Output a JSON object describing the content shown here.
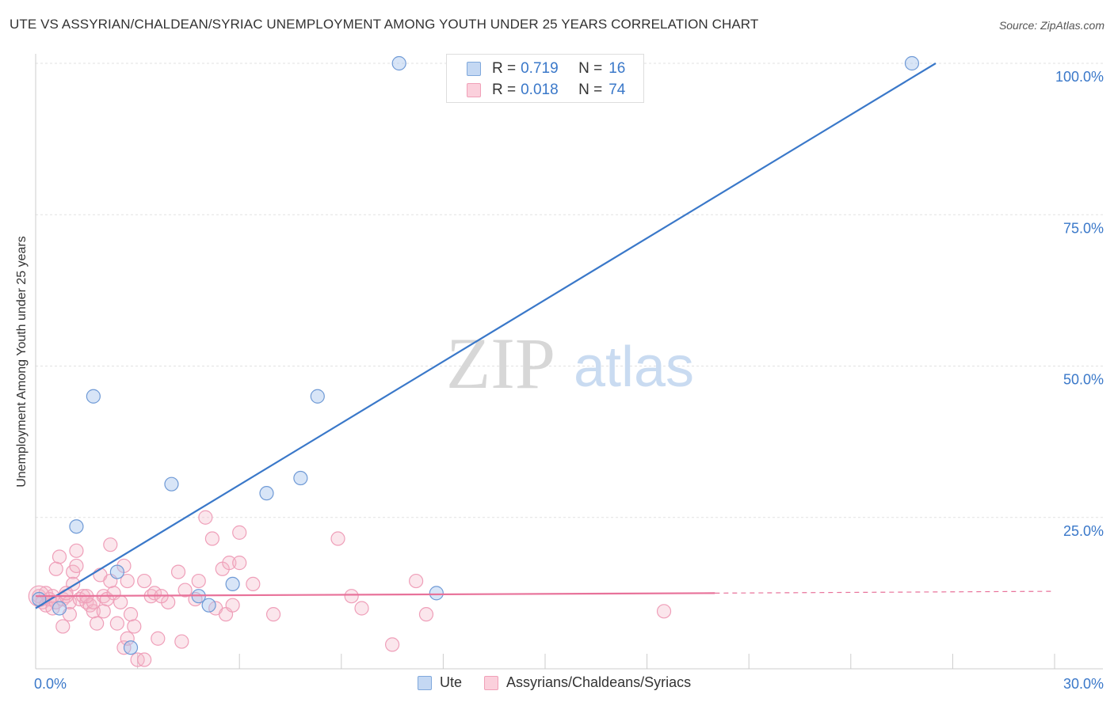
{
  "header": {
    "title": "UTE VS ASSYRIAN/CHALDEAN/SYRIAC UNEMPLOYMENT AMONG YOUTH UNDER 25 YEARS CORRELATION CHART",
    "source": "Source: ZipAtlas.com"
  },
  "watermark": {
    "zip": "ZIP",
    "atlas": "atlas"
  },
  "colors": {
    "ute": "#a9c6ee",
    "ute_line": "#3a78c9",
    "assyrian": "#f4b6c8",
    "assyrian_line": "#e8729a",
    "axis_text": "#3a78c9"
  },
  "legend": {
    "rows": [
      {
        "series": "Ute",
        "r_label": "R =",
        "r_value": "0.719",
        "n_label": "N =",
        "n_value": "16"
      },
      {
        "series": "Assyrians/Chaldeans/Syriacs",
        "r_label": "R =",
        "r_value": "0.018",
        "n_label": "N =",
        "n_value": "74"
      }
    ]
  },
  "bottom_legend": {
    "ute": "Ute",
    "assyrian": "Assyrians/Chaldeans/Syriacs"
  },
  "chart_data": {
    "type": "scatter",
    "title": "UTE VS ASSYRIAN/CHALDEAN/SYRIAC UNEMPLOYMENT AMONG YOUTH UNDER 25 YEARS CORRELATION CHART",
    "xlabel": "",
    "ylabel": "Unemployment Among Youth under 25 years",
    "xlim": [
      0,
      30
    ],
    "ylim": [
      0,
      100
    ],
    "x_tick_labels": [
      "0.0%",
      "30.0%"
    ],
    "y_tick_labels": [
      "25.0%",
      "50.0%",
      "75.0%",
      "100.0%"
    ],
    "y_ticks": [
      25,
      50,
      75,
      100
    ],
    "x_grid_ticks": [
      3,
      6,
      9,
      12,
      15,
      18,
      21,
      24,
      27,
      30
    ],
    "grid": true,
    "series": [
      {
        "name": "Ute",
        "r": 0.719,
        "n": 16,
        "points": [
          [
            0.1,
            11.5
          ],
          [
            0.7,
            10.0
          ],
          [
            1.2,
            23.5
          ],
          [
            1.7,
            45.0
          ],
          [
            2.4,
            16.0
          ],
          [
            2.8,
            3.5
          ],
          [
            4.0,
            30.5
          ],
          [
            4.8,
            12.0
          ],
          [
            5.1,
            10.5
          ],
          [
            5.8,
            14.0
          ],
          [
            6.8,
            29.0
          ],
          [
            7.8,
            31.5
          ],
          [
            8.3,
            45.0
          ],
          [
            10.7,
            100.0
          ],
          [
            11.8,
            12.5
          ],
          [
            25.8,
            100.0
          ]
        ],
        "trend": {
          "x0": 0.0,
          "y0": 10.0,
          "x1": 26.5,
          "y1": 100.0
        }
      },
      {
        "name": "Assyrians/Chaldeans/Syriacs",
        "r": 0.018,
        "n": 74,
        "points": [
          [
            0.1,
            12.0
          ],
          [
            0.2,
            11.0
          ],
          [
            0.3,
            12.5
          ],
          [
            0.3,
            10.5
          ],
          [
            0.4,
            11.5
          ],
          [
            0.5,
            10.0
          ],
          [
            0.5,
            12.0
          ],
          [
            0.6,
            11.0
          ],
          [
            0.6,
            16.5
          ],
          [
            0.7,
            18.5
          ],
          [
            0.8,
            11.5
          ],
          [
            0.8,
            7.0
          ],
          [
            0.9,
            12.0
          ],
          [
            1.0,
            11.0
          ],
          [
            1.0,
            9.0
          ],
          [
            1.1,
            16.0
          ],
          [
            1.1,
            14.0
          ],
          [
            1.2,
            19.5
          ],
          [
            1.2,
            17.0
          ],
          [
            1.3,
            11.5
          ],
          [
            1.4,
            12.0
          ],
          [
            1.5,
            11.0
          ],
          [
            1.6,
            10.5
          ],
          [
            1.7,
            9.5
          ],
          [
            1.7,
            11.0
          ],
          [
            1.8,
            7.5
          ],
          [
            1.9,
            15.5
          ],
          [
            2.0,
            12.0
          ],
          [
            2.1,
            11.5
          ],
          [
            2.2,
            14.5
          ],
          [
            2.2,
            20.5
          ],
          [
            2.3,
            12.5
          ],
          [
            2.4,
            7.5
          ],
          [
            2.5,
            11.0
          ],
          [
            2.6,
            17.0
          ],
          [
            2.6,
            3.5
          ],
          [
            2.7,
            14.5
          ],
          [
            2.7,
            5.0
          ],
          [
            2.8,
            9.0
          ],
          [
            3.0,
            1.5
          ],
          [
            3.2,
            1.5
          ],
          [
            3.2,
            14.5
          ],
          [
            3.4,
            12.0
          ],
          [
            3.5,
            12.5
          ],
          [
            3.6,
            5.0
          ],
          [
            3.9,
            11.0
          ],
          [
            4.2,
            16.0
          ],
          [
            4.3,
            4.5
          ],
          [
            4.4,
            13.0
          ],
          [
            4.8,
            14.5
          ],
          [
            5.0,
            25.0
          ],
          [
            5.2,
            21.5
          ],
          [
            5.3,
            10.0
          ],
          [
            5.5,
            16.5
          ],
          [
            5.6,
            9.0
          ],
          [
            5.7,
            17.5
          ],
          [
            5.8,
            10.5
          ],
          [
            6.0,
            22.5
          ],
          [
            6.0,
            17.5
          ],
          [
            6.4,
            14.0
          ],
          [
            7.0,
            9.0
          ],
          [
            8.9,
            21.5
          ],
          [
            9.3,
            12.0
          ],
          [
            9.6,
            10.0
          ],
          [
            10.5,
            4.0
          ],
          [
            11.2,
            14.5
          ],
          [
            11.5,
            9.0
          ],
          [
            1.5,
            12.0
          ],
          [
            0.9,
            12.5
          ],
          [
            2.9,
            7.0
          ],
          [
            3.7,
            12.0
          ],
          [
            4.7,
            11.5
          ],
          [
            2.0,
            9.5
          ],
          [
            18.5,
            9.5
          ]
        ],
        "trend": {
          "x0": 0.0,
          "y0": 12.0,
          "x1": 20.0,
          "y1": 12.5
        },
        "trend_dashed": {
          "x0": 20.0,
          "y0": 12.5,
          "x1": 30.0,
          "y1": 12.8
        }
      }
    ]
  }
}
